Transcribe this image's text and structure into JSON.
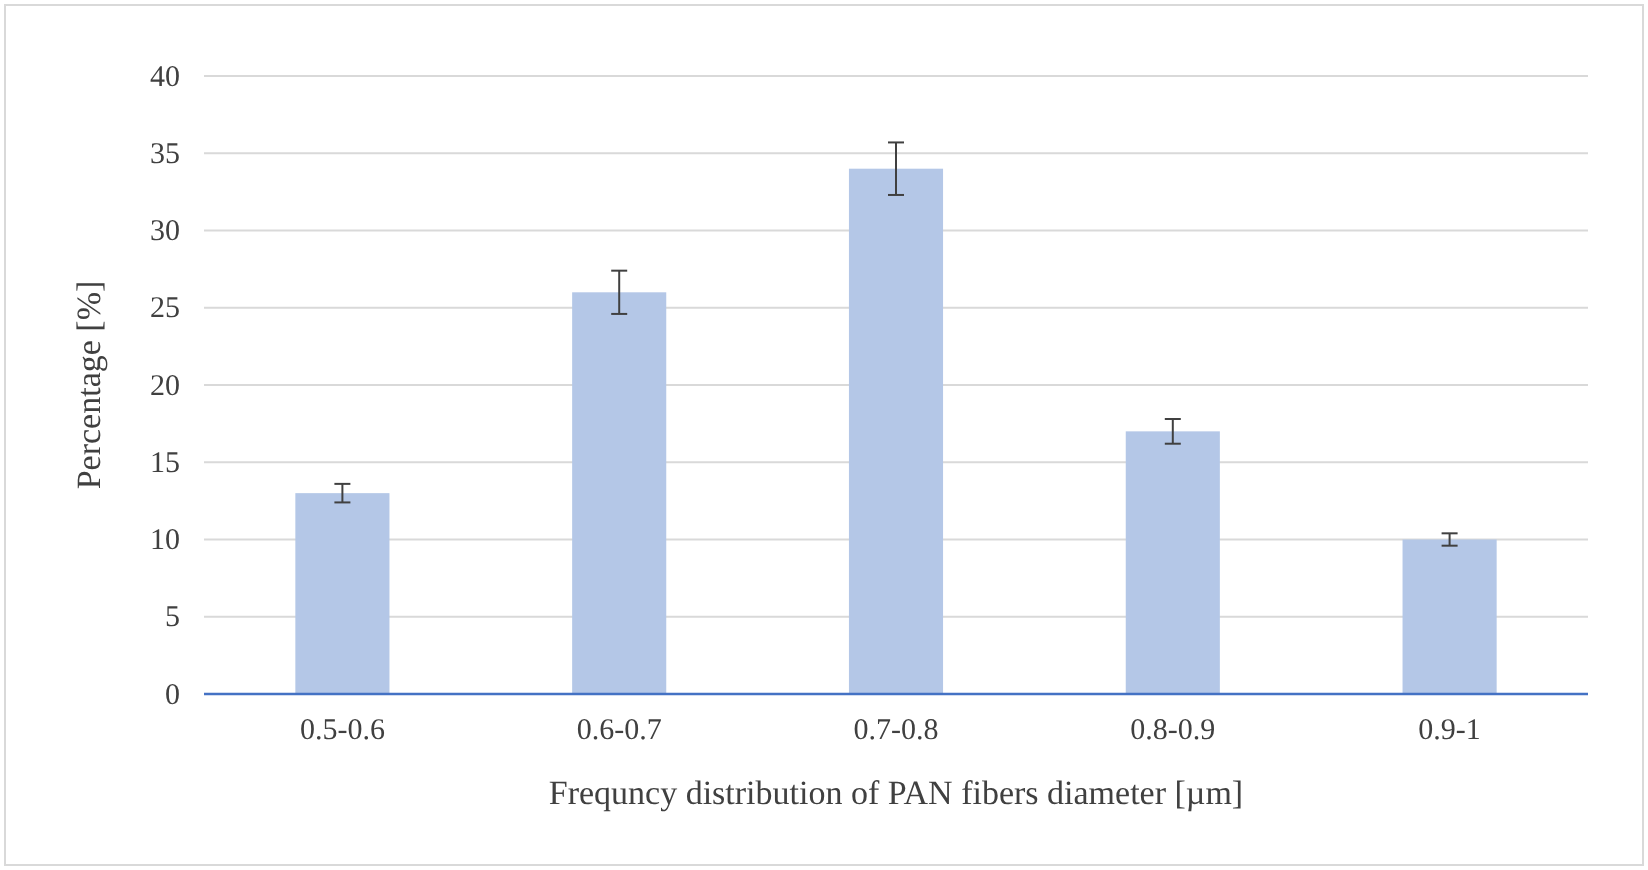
{
  "chart_data": {
    "type": "bar",
    "xlabel": "Frequncy distribution of PAN fibers diameter [µm]",
    "ylabel": "Percentage [%]",
    "categories": [
      "0.5-0.6",
      "0.6-0.7",
      "0.7-0.8",
      "0.8-0.9",
      "0.9-1"
    ],
    "values": [
      13,
      26,
      34,
      17,
      10
    ],
    "errors": [
      0.6,
      1.4,
      1.7,
      0.8,
      0.4
    ],
    "color": "#b4c7e7",
    "ylim": [
      0,
      40
    ],
    "yticks": [
      0,
      5,
      10,
      15,
      20,
      25,
      30,
      35,
      40
    ],
    "grid": "y"
  }
}
